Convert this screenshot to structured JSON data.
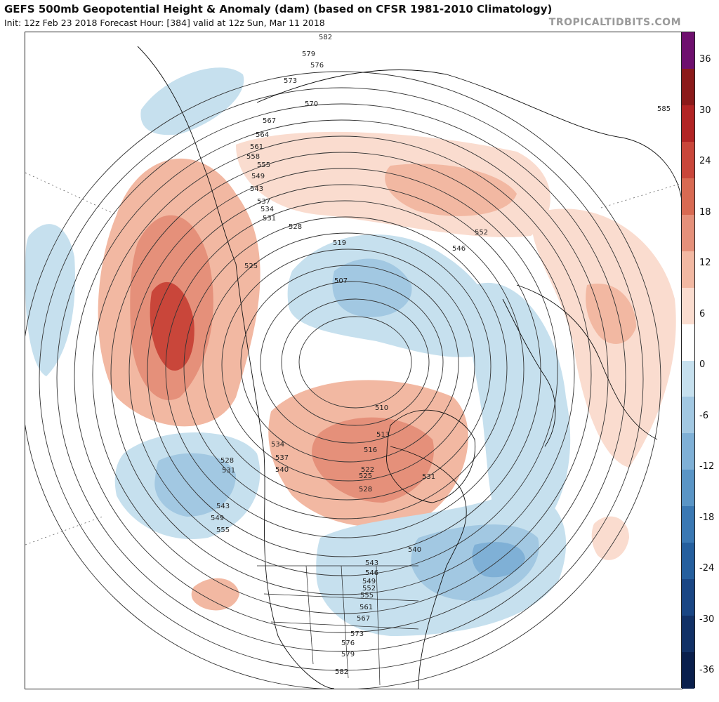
{
  "header": {
    "title": "GEFS 500mb Geopotential Height & Anomaly (dam) (based on CFSR 1981-2010 Climatology)",
    "subtitle": "Init: 12z Feb 23 2018   Forecast Hour: [384]   valid at 12z Sun, Mar 11 2018",
    "brand": "TROPICALTIDBITS.COM"
  },
  "colorbar": {
    "labels": [
      "36",
      "30",
      "24",
      "18",
      "12",
      "6",
      "0",
      "-6",
      "-12",
      "-18",
      "-24",
      "-30",
      "-36"
    ],
    "colors": [
      "#6e0f6e",
      "#8b1a1a",
      "#b22424",
      "#c9463a",
      "#d86a52",
      "#e5907a",
      "#f2b8a2",
      "#fadccf",
      "#ffffff",
      "#c6e0ee",
      "#a2c8e2",
      "#7fb0d6",
      "#5a95c6",
      "#3a78b3",
      "#255f9e",
      "#1a4684",
      "#123166",
      "#0a1f4c"
    ]
  },
  "map": {
    "contour_labels": [
      "582",
      "579",
      "576",
      "573",
      "570",
      "567",
      "564",
      "561",
      "558",
      "555",
      "549",
      "543",
      "537",
      "534",
      "531",
      "528",
      "525",
      "519",
      "507",
      "510",
      "513",
      "516",
      "522",
      "546",
      "552",
      "540",
      "585"
    ]
  }
}
